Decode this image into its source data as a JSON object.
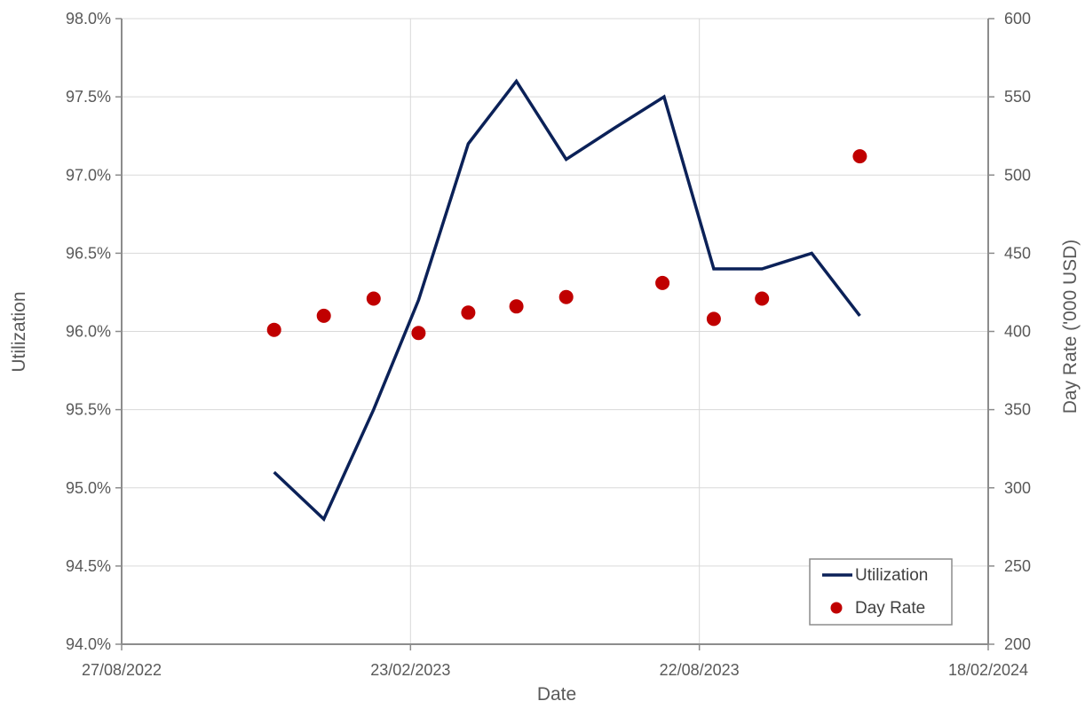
{
  "chart_data": {
    "type": "line",
    "x_type": "date",
    "xlabel": "Date",
    "ylabel": "Utilization",
    "y2label": "Day Rate ('000 USD)",
    "xlim": [
      "27/08/2022",
      "18/02/2024"
    ],
    "x_ticks": [
      "27/08/2022",
      "23/02/2023",
      "22/08/2023",
      "18/02/2024"
    ],
    "ylim": [
      0.94,
      0.98
    ],
    "y_ticks": [
      "94.0%",
      "94.5%",
      "95.0%",
      "95.5%",
      "96.0%",
      "96.5%",
      "97.0%",
      "97.5%",
      "98.0%"
    ],
    "y2lim": [
      200,
      600
    ],
    "y2_ticks": [
      "200",
      "250",
      "300",
      "350",
      "400",
      "450",
      "500",
      "550",
      "600"
    ],
    "grid": true,
    "legend_position": "bottom-right",
    "colors": {
      "utilization": "#0b2158",
      "day_rate": "#c00000",
      "axis": "#8c8c8c",
      "grid": "#d9d9d9"
    },
    "series": [
      {
        "name": "Utilization",
        "kind": "line",
        "axis": "left",
        "x": [
          "30/11/2022",
          "31/12/2022",
          "31/01/2023",
          "28/02/2023",
          "31/03/2023",
          "30/04/2023",
          "31/05/2023",
          "30/06/2023",
          "31/07/2023",
          "31/08/2023",
          "30/09/2023",
          "31/10/2023",
          "30/11/2023"
        ],
        "values": [
          0.951,
          0.948,
          0.955,
          0.962,
          0.972,
          0.976,
          0.971,
          0.973,
          0.975,
          0.964,
          0.964,
          0.965,
          0.961
        ]
      },
      {
        "name": "Day Rate",
        "kind": "scatter",
        "axis": "right",
        "x": [
          "30/11/2022",
          "31/12/2022",
          "31/01/2023",
          "28/02/2023",
          "31/03/2023",
          "30/04/2023",
          "31/05/2023",
          "30/07/2023",
          "31/08/2023",
          "30/09/2023",
          "30/11/2023"
        ],
        "values": [
          401,
          410,
          421,
          399,
          412,
          416,
          422,
          431,
          408,
          421,
          512
        ]
      }
    ]
  }
}
